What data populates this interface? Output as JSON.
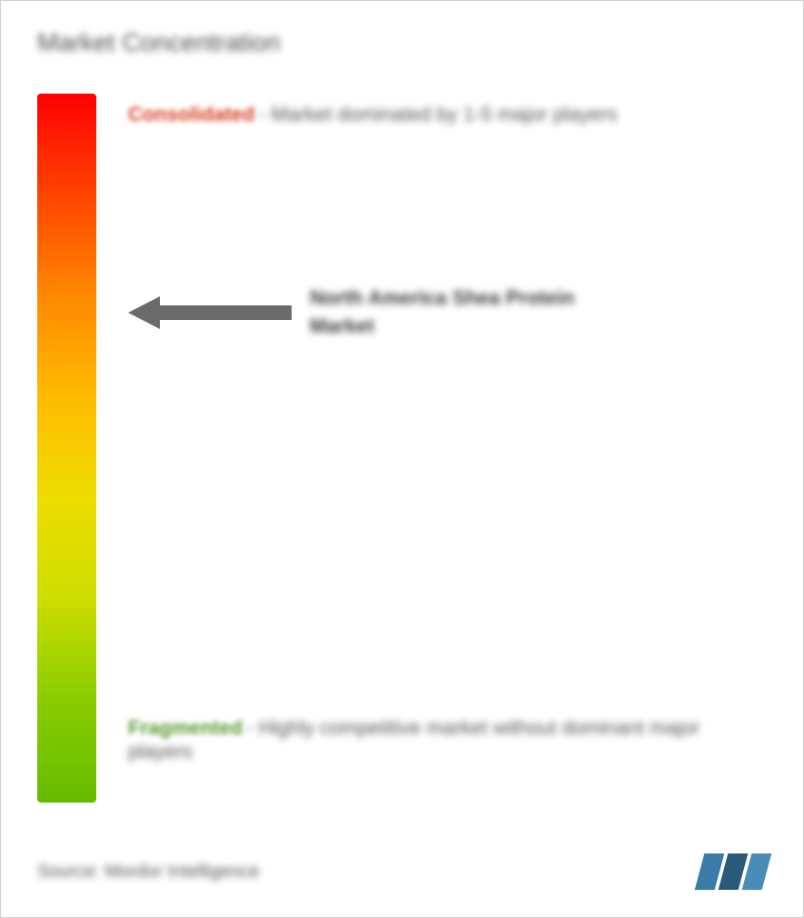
{
  "title": "Market Concentration",
  "gradient": {
    "colors": [
      "#ff0000",
      "#ff4400",
      "#ff8800",
      "#ffbb00",
      "#eedd00",
      "#ccdd00",
      "#88cc00",
      "#66bb00"
    ],
    "top_color": "#ff0000",
    "bottom_color": "#66bb00"
  },
  "consolidated": {
    "label": "Consolidated",
    "label_color": "#d84020",
    "description": "- Market dominated by 1-5 major players"
  },
  "market": {
    "name": "North America Shea Protein Market",
    "arrow_color": "#6b6b6b",
    "arrow_position_pct": 28
  },
  "fragmented": {
    "label": "Fragmented",
    "label_color": "#5a9930",
    "description": "- Highly competitive market without dominant major players",
    "subtext": ""
  },
  "footer": {
    "source": "Source: Mordor Intelligence",
    "logo_colors": [
      "#3a7ca8",
      "#2a5a7a",
      "#4a8cb8"
    ]
  },
  "styling": {
    "background_color": "#ffffff",
    "title_color": "#4a4a4a",
    "text_color": "#555555",
    "border_color": "#d0d0d0",
    "title_fontsize": 28,
    "label_fontsize": 22,
    "source_fontsize": 20,
    "gradient_bar_width": 65,
    "gradient_bar_height": 780
  }
}
